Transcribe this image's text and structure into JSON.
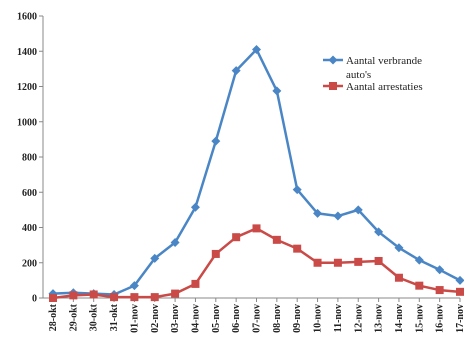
{
  "chart_data": {
    "type": "line",
    "categories": [
      "28-okt",
      "29-okt",
      "30-okt",
      "31-okt",
      "01-nov",
      "02-nov",
      "03-nov",
      "04-nov",
      "05-nov",
      "06-nov",
      "07-nov",
      "08-nov",
      "09-nov",
      "10-nov",
      "11-nov",
      "12-nov",
      "13-nov",
      "14-nov",
      "15-nov",
      "16-nov",
      "17-nov"
    ],
    "series": [
      {
        "name": "Aantal verbrande auto's",
        "color": "#4a86c5",
        "marker": "diamond",
        "values": [
          25,
          30,
          25,
          20,
          70,
          225,
          315,
          515,
          890,
          1290,
          1410,
          1175,
          615,
          480,
          465,
          500,
          375,
          285,
          215,
          160,
          100
        ]
      },
      {
        "name": "Aantal arrestaties",
        "color": "#c94a47",
        "marker": "square",
        "values": [
          0,
          15,
          20,
          5,
          5,
          5,
          25,
          80,
          250,
          345,
          395,
          330,
          280,
          200,
          200,
          205,
          210,
          115,
          70,
          45,
          35
        ]
      }
    ],
    "yticks": [
      "0",
      "200",
      "400",
      "600",
      "800",
      "1000",
      "1200",
      "1400",
      "1600"
    ],
    "ylim": [
      0,
      1600
    ],
    "grid": false,
    "legend_position": "top-right"
  }
}
